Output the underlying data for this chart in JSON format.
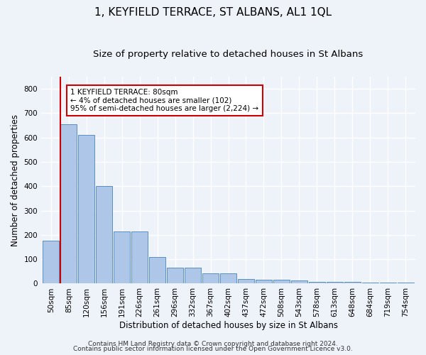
{
  "title": "1, KEYFIELD TERRACE, ST ALBANS, AL1 1QL",
  "subtitle": "Size of property relative to detached houses in St Albans",
  "xlabel": "Distribution of detached houses by size in St Albans",
  "ylabel": "Number of detached properties",
  "bar_labels": [
    "50sqm",
    "85sqm",
    "120sqm",
    "156sqm",
    "191sqm",
    "226sqm",
    "261sqm",
    "296sqm",
    "332sqm",
    "367sqm",
    "402sqm",
    "437sqm",
    "472sqm",
    "508sqm",
    "543sqm",
    "578sqm",
    "613sqm",
    "648sqm",
    "684sqm",
    "719sqm",
    "754sqm"
  ],
  "bar_values": [
    175,
    655,
    610,
    400,
    215,
    215,
    110,
    65,
    65,
    43,
    43,
    18,
    15,
    15,
    13,
    8,
    8,
    8,
    5,
    5,
    5
  ],
  "bar_color": "#aec6e8",
  "bar_edgecolor": "#5a8fc0",
  "property_line_color": "#cc0000",
  "annotation_text": "1 KEYFIELD TERRACE: 80sqm\n← 4% of detached houses are smaller (102)\n95% of semi-detached houses are larger (2,224) →",
  "annotation_box_color": "#ffffff",
  "annotation_box_edgecolor": "#cc0000",
  "ylim": [
    0,
    850
  ],
  "yticks": [
    0,
    100,
    200,
    300,
    400,
    500,
    600,
    700,
    800
  ],
  "footer1": "Contains HM Land Registry data © Crown copyright and database right 2024.",
  "footer2": "Contains public sector information licensed under the Open Government Licence v3.0.",
  "background_color": "#eef2f9",
  "grid_color": "#ffffff",
  "title_fontsize": 11,
  "subtitle_fontsize": 9.5,
  "tick_fontsize": 7.5,
  "ylabel_fontsize": 8.5,
  "xlabel_fontsize": 8.5,
  "annotation_fontsize": 7.5,
  "footer_fontsize": 6.5
}
